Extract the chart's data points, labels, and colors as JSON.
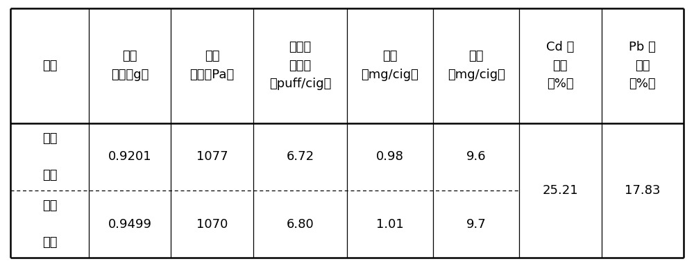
{
  "header_lines": [
    [
      "样品",
      "平均\n重量（g）",
      "平均\n吸阻（Pa）",
      "平均抽\n吸口数\n（puff/cig）",
      "烟碱\n（mg/cig）",
      "焦油\n（mg/cig）",
      "Cd 降\n低率\n（%）",
      "Pb 降\n低率\n（%）"
    ]
  ],
  "row1": [
    "对照\n\n卷烟",
    "0.9201",
    "1077",
    "6.72",
    "0.98",
    "9.6"
  ],
  "row2": [
    "试验\n\n卷烟",
    "0.9499",
    "1070",
    "6.80",
    "1.01",
    "9.7"
  ],
  "merged_cd": "25.21",
  "merged_pb": "17.83",
  "col_ratios": [
    1.0,
    1.05,
    1.05,
    1.2,
    1.1,
    1.1,
    1.05,
    1.05
  ],
  "font_size": 13,
  "font_size_header": 13,
  "line_color": "#000000",
  "bg_color": "#ffffff",
  "outer_lw": 1.8,
  "inner_lw": 0.9,
  "dash_pattern": [
    4,
    3
  ]
}
